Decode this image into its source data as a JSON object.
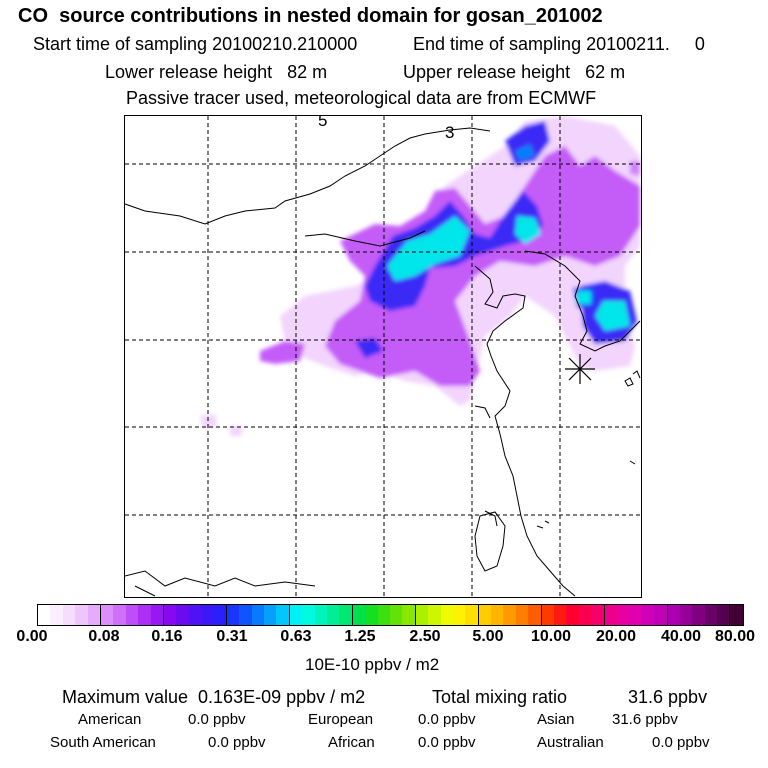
{
  "header": {
    "title": "CO  source contributions in nested domain for gosan_201002",
    "start_label": "Start time of sampling 20100210.210000",
    "end_label": "End time of sampling 20100211.     0",
    "lower_label": "Lower release height   82 m",
    "upper_label": "Upper release height   62 m",
    "info_line": "Passive tracer used, meteorological data are from ECMWF"
  },
  "map": {
    "contour_labels": [
      "5",
      "3"
    ],
    "receptor_marker": "asterisk-icon"
  },
  "colorbar": {
    "ticks": [
      "0.00",
      "0.08",
      "0.16",
      "0.31",
      "0.63",
      "1.25",
      "2.50",
      "5.00",
      "10.00",
      "20.00",
      "40.00",
      "80.00"
    ],
    "units": "10E-10 ppbv / m2",
    "colors": [
      "#ffffff",
      "#fbeefe",
      "#f6dcfd",
      "#efc6fc",
      "#e6acfb",
      "#dc8ffa",
      "#d06ff9",
      "#c04ef8",
      "#ad2ff6",
      "#9a16f4",
      "#8a08f0",
      "#6a0cf0",
      "#5012f5",
      "#3c18f8",
      "#2a20fb",
      "#1a36fd",
      "#0f55fd",
      "#077afd",
      "#04a0fc",
      "#00c6fa",
      "#00f0f8",
      "#00fae0",
      "#00f5bc",
      "#00ee96",
      "#00e870",
      "#00e04a",
      "#12e020",
      "#3ae010",
      "#62e208",
      "#88e800",
      "#aaf000",
      "#cdf600",
      "#f0fa00",
      "#fff200",
      "#ffe000",
      "#ffcc00",
      "#ffb400",
      "#ff9a00",
      "#ff7e00",
      "#ff5e00",
      "#ff3a00",
      "#ff1a10",
      "#ff0030",
      "#fa0050",
      "#f5006e",
      "#ef008a",
      "#e800a2",
      "#e000b2",
      "#d000b8",
      "#bf00b8",
      "#aa00b0",
      "#960098",
      "#7f0080",
      "#6a0068",
      "#550050",
      "#400036"
    ]
  },
  "stats": {
    "max_label": "Maximum value  0.163E-09 ppbv / m2",
    "total_label": "Total mixing ratio",
    "total_value": "31.6 ppbv"
  },
  "sources": [
    {
      "name": "American",
      "value": "0.0 ppbv"
    },
    {
      "name": "European",
      "value": "0.0 ppbv"
    },
    {
      "name": "Asian",
      "value": "31.6 ppbv"
    },
    {
      "name": "South American",
      "value": "0.0 ppbv"
    },
    {
      "name": "African",
      "value": "0.0 ppbv"
    },
    {
      "name": "Australian",
      "value": "0.0 ppbv"
    }
  ]
}
